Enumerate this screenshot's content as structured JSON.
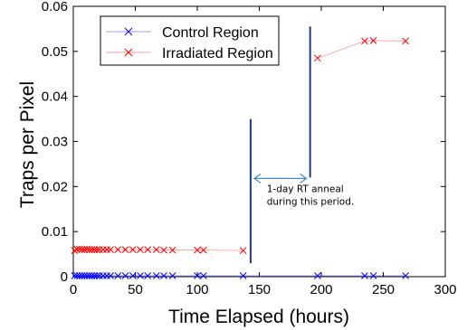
{
  "chart_data": {
    "type": "line",
    "title": "",
    "xlabel": "Time Elapsed (hours)",
    "ylabel": "Traps per Pixel",
    "xlim": [
      0,
      300
    ],
    "ylim": [
      0,
      0.06
    ],
    "x_ticks": [
      0,
      50,
      100,
      150,
      200,
      250,
      300
    ],
    "x_tick_labels": [
      "0",
      "50",
      "100",
      "150",
      "200",
      "250",
      "300"
    ],
    "y_ticks": [
      0,
      0.01,
      0.02,
      0.03,
      0.04,
      0.05,
      0.06
    ],
    "y_tick_labels": [
      "0",
      "0.01",
      "0.02",
      "0.03",
      "0.04",
      "0.05",
      "0.06"
    ],
    "grid": false,
    "legend_position": "top-left",
    "series": [
      {
        "name": "Control Region",
        "color": "#0000ff",
        "marker": "x",
        "points": [
          [
            1,
            0.0002
          ],
          [
            3,
            0.0002
          ],
          [
            5,
            0.0002
          ],
          [
            7,
            0.0002
          ],
          [
            9,
            0.0002
          ],
          [
            11,
            0.0002
          ],
          [
            13,
            0.0002
          ],
          [
            15,
            0.0002
          ],
          [
            17,
            0.0002
          ],
          [
            19,
            0.0002
          ],
          [
            21,
            0.0002
          ],
          [
            24,
            0.0002
          ],
          [
            27,
            0.0002
          ],
          [
            30,
            0.0002
          ],
          [
            36,
            0.0002
          ],
          [
            42,
            0.0002
          ],
          [
            48,
            0.0002
          ],
          [
            54,
            0.0002
          ],
          [
            60,
            0.0002
          ],
          [
            67,
            0.0002
          ],
          [
            73,
            0.0002
          ],
          [
            80,
            0.0002
          ],
          [
            100,
            0.0002
          ],
          [
            105,
            0.0002
          ],
          [
            137,
            0.0002
          ],
          [
            197,
            0.0002
          ],
          [
            235,
            0.0002
          ],
          [
            242,
            0.0002
          ],
          [
            268,
            0.0002
          ]
        ]
      },
      {
        "name": "Irradiated Region",
        "color": "#ff0000",
        "marker": "x",
        "segments": [
          [
            [
              1,
              0.0058
            ],
            [
              3,
              0.0061
            ],
            [
              5,
              0.0061
            ],
            [
              7,
              0.006
            ],
            [
              9,
              0.006
            ],
            [
              11,
              0.0061
            ],
            [
              13,
              0.006
            ],
            [
              15,
              0.006
            ],
            [
              17,
              0.006
            ],
            [
              19,
              0.006
            ],
            [
              21,
              0.006
            ],
            [
              24,
              0.006
            ],
            [
              27,
              0.006
            ],
            [
              30,
              0.006
            ],
            [
              36,
              0.006
            ],
            [
              42,
              0.006
            ],
            [
              48,
              0.006
            ],
            [
              54,
              0.006
            ],
            [
              60,
              0.006
            ],
            [
              67,
              0.006
            ],
            [
              73,
              0.0059
            ],
            [
              80,
              0.0059
            ],
            [
              100,
              0.0059
            ],
            [
              105,
              0.0059
            ],
            [
              137,
              0.0058
            ]
          ],
          [
            [
              197,
              0.0485
            ],
            [
              235,
              0.0523
            ],
            [
              242,
              0.0524
            ],
            [
              268,
              0.0523
            ]
          ]
        ]
      }
    ],
    "annotations": {
      "anneal_start_line": {
        "x": 143,
        "y_from": 0.003,
        "y_to": 0.035,
        "color": "#1f3d7a"
      },
      "anneal_end_line": {
        "x": 191,
        "y_from": 0.022,
        "y_to": 0.0555,
        "color": "#1f3d7a"
      },
      "interval_arrow": {
        "x_from": 146,
        "x_to": 188,
        "y": 0.0218,
        "color": "#4a8cc8"
      },
      "text_lines": [
        "1-day RT anneal",
        "during this period."
      ],
      "text_anchor": {
        "x": 156,
        "y": 0.0188
      }
    }
  }
}
